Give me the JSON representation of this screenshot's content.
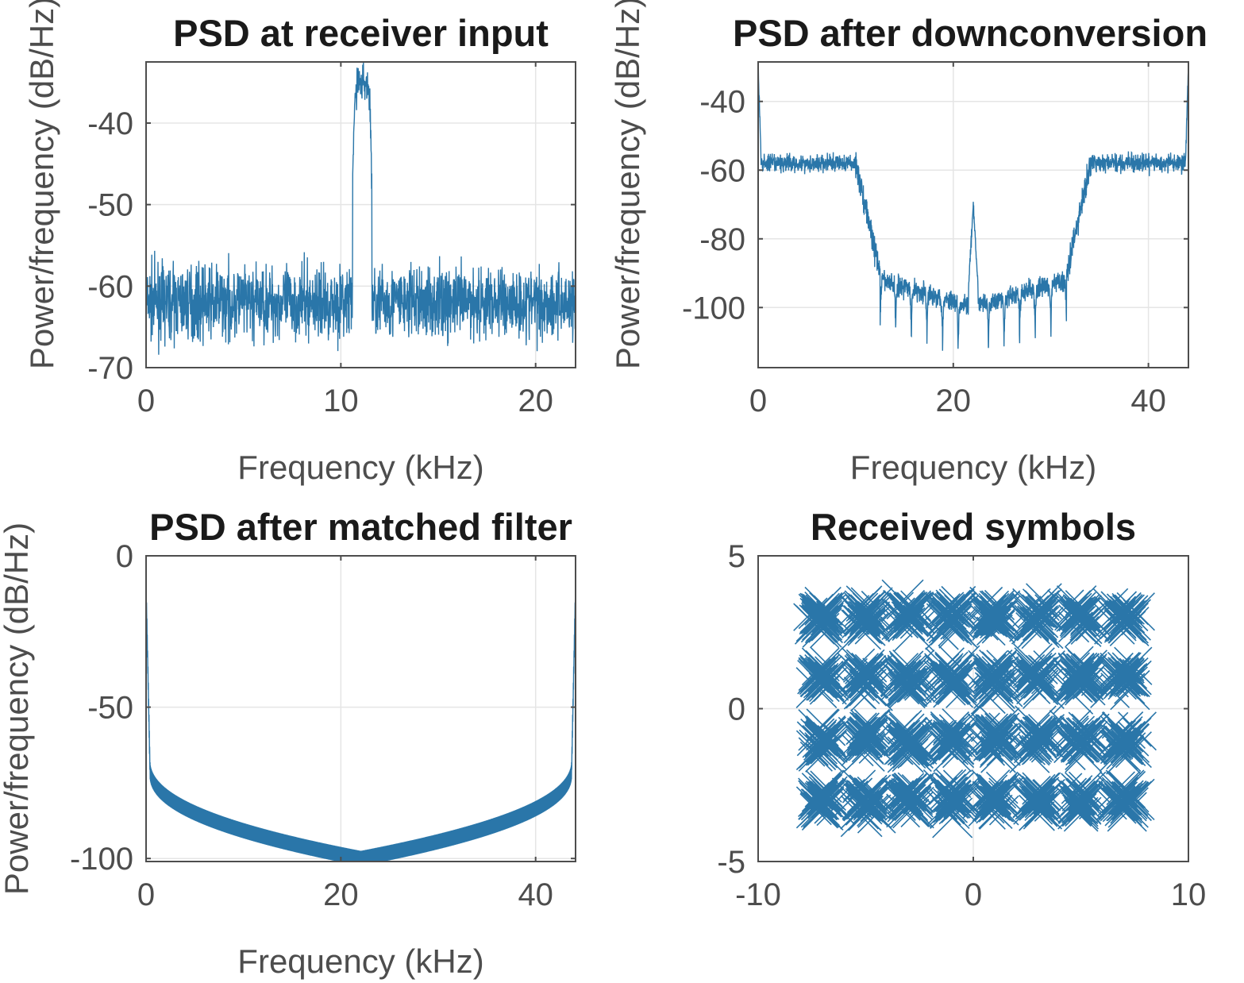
{
  "colors": {
    "series": "#2a76a9",
    "grid": "#e5e5e5",
    "axis": "#4d4d4d"
  },
  "chart_data": [
    {
      "type": "line",
      "title": "PSD at receiver input",
      "xlabel": "Frequency (kHz)",
      "ylabel": "Power/frequency (dB/Hz)",
      "xlim": [
        0,
        22.05
      ],
      "ylim": [
        -70,
        -32.5
      ],
      "xticks": [
        0,
        10,
        20
      ],
      "yticks": [
        -40,
        -50,
        -60,
        -70
      ],
      "grid": true,
      "noise_floor_db": -62,
      "signal_band_khz": [
        10.6,
        11.6
      ],
      "signal_peak_db": -33
    },
    {
      "type": "line",
      "title": "PSD after downconversion",
      "xlabel": "Frequency (kHz)",
      "ylabel": "Power/frequency (dB/Hz)",
      "xlim": [
        0,
        44.1
      ],
      "ylim": [
        -117.5,
        -28.5
      ],
      "xticks": [
        0,
        20,
        40
      ],
      "yticks": [
        -40,
        -60,
        -80,
        -100
      ],
      "grid": true,
      "passband_db": -58,
      "stopband_db": -100,
      "edge_peak_db": -29,
      "center_spike_khz": 22.05,
      "center_spike_db": -70
    },
    {
      "type": "line",
      "title": "PSD after matched filter",
      "xlabel": "Frequency (kHz)",
      "ylabel": "Power/frequency (dB/Hz)",
      "xlim": [
        0,
        44.1
      ],
      "ylim": [
        -101,
        0
      ],
      "xticks": [
        0,
        20,
        40
      ],
      "yticks": [
        0,
        -50,
        -100
      ],
      "grid": true,
      "edge_db": -10,
      "knee_db": -70,
      "minimum_db": -100
    },
    {
      "type": "scatter",
      "title": "Received symbols",
      "xlabel": "",
      "ylabel": "",
      "xlim": [
        -10,
        10
      ],
      "ylim": [
        -5,
        5
      ],
      "xticks": [
        -10,
        0,
        10
      ],
      "yticks": [
        5,
        0,
        -5
      ],
      "grid": true,
      "marker": "x",
      "constellation_x": [
        -7,
        -5,
        -3,
        -1,
        1,
        3,
        5,
        7
      ],
      "constellation_y": [
        -3,
        -1,
        1,
        3
      ]
    }
  ]
}
